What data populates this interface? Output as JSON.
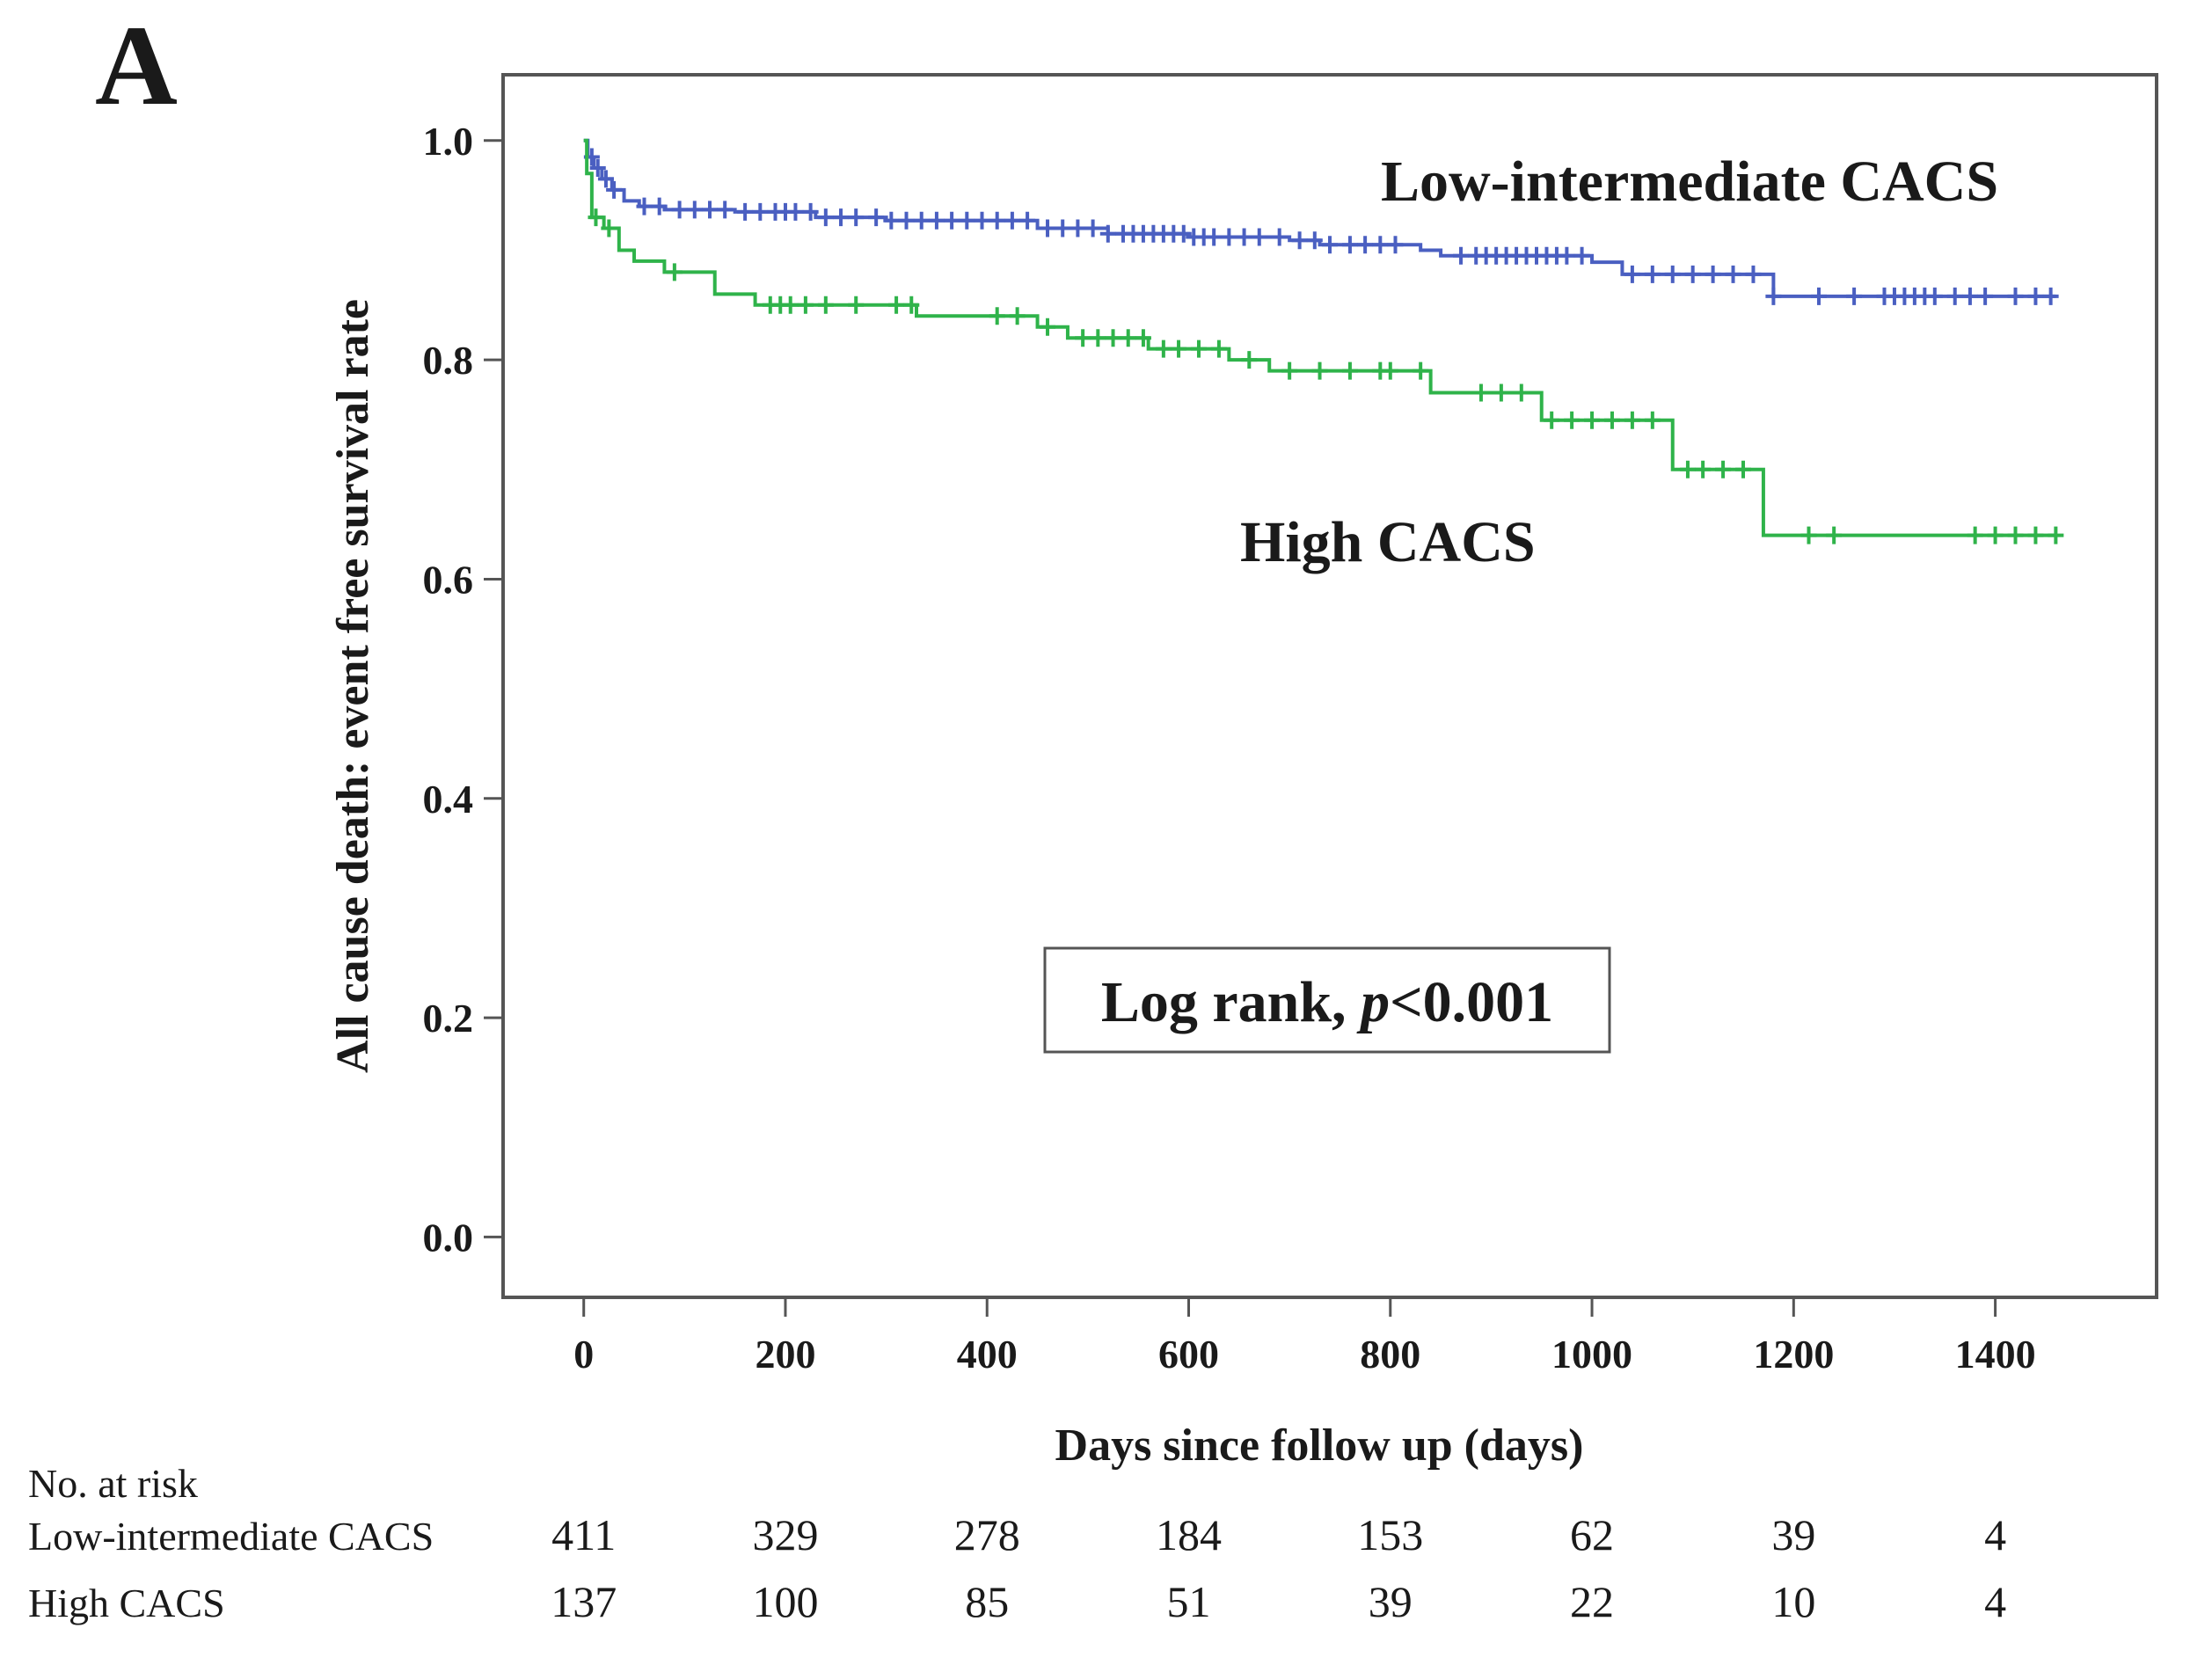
{
  "panel_label": "A",
  "chart_data": {
    "type": "line",
    "subtype": "kaplan-meier",
    "xlabel": "Days since follow up (days)",
    "ylabel": "All cause death: event free survival rate",
    "xlim": [
      -80,
      1560
    ],
    "ylim": [
      -0.055,
      1.06
    ],
    "xticks": [
      0,
      200,
      400,
      600,
      800,
      1000,
      1200,
      1400
    ],
    "xtick_labels": [
      "0",
      "200",
      "400",
      "600",
      "800",
      "1000",
      "1200",
      "1400"
    ],
    "yticks": [
      0.0,
      0.2,
      0.4,
      0.6,
      0.8,
      1.0
    ],
    "ytick_labels": [
      "0.0",
      "0.2",
      "0.4",
      "0.6",
      "0.8",
      "1.0"
    ],
    "annotation": {
      "prefix": "Log rank, ",
      "p_symbol": "p",
      "suffix": "<0.001"
    },
    "series": [
      {
        "name": "Low-intermediate CACS",
        "label": "Low-intermediate CACS",
        "color": "#4a5fc1",
        "steps": [
          [
            0,
            1.0
          ],
          [
            4,
            0.985
          ],
          [
            10,
            0.975
          ],
          [
            18,
            0.965
          ],
          [
            28,
            0.955
          ],
          [
            40,
            0.945
          ],
          [
            55,
            0.94
          ],
          [
            80,
            0.937
          ],
          [
            150,
            0.935
          ],
          [
            230,
            0.93
          ],
          [
            300,
            0.927
          ],
          [
            450,
            0.92
          ],
          [
            520,
            0.915
          ],
          [
            600,
            0.912
          ],
          [
            700,
            0.909
          ],
          [
            730,
            0.905
          ],
          [
            830,
            0.9
          ],
          [
            850,
            0.895
          ],
          [
            1000,
            0.889
          ],
          [
            1030,
            0.878
          ],
          [
            1180,
            0.858
          ],
          [
            1460,
            0.858
          ]
        ],
        "censor_times": [
          8,
          14,
          22,
          30,
          60,
          75,
          95,
          110,
          125,
          140,
          160,
          175,
          190,
          200,
          210,
          225,
          240,
          255,
          270,
          290,
          305,
          320,
          335,
          350,
          365,
          380,
          395,
          410,
          425,
          440,
          460,
          475,
          490,
          505,
          520,
          535,
          545,
          555,
          565,
          575,
          585,
          595,
          605,
          615,
          625,
          640,
          655,
          670,
          690,
          710,
          725,
          740,
          760,
          775,
          790,
          805,
          870,
          885,
          895,
          905,
          915,
          925,
          935,
          945,
          955,
          965,
          975,
          990,
          1040,
          1060,
          1080,
          1100,
          1120,
          1140,
          1160,
          1180,
          1225,
          1260,
          1290,
          1300,
          1310,
          1320,
          1330,
          1340,
          1360,
          1375,
          1390,
          1420,
          1440,
          1455
        ]
      },
      {
        "name": "High CACS",
        "label": "High CACS",
        "color": "#2fb34a",
        "steps": [
          [
            0,
            1.0
          ],
          [
            3,
            0.97
          ],
          [
            8,
            0.93
          ],
          [
            20,
            0.92
          ],
          [
            35,
            0.9
          ],
          [
            50,
            0.89
          ],
          [
            80,
            0.88
          ],
          [
            130,
            0.86
          ],
          [
            170,
            0.85
          ],
          [
            330,
            0.84
          ],
          [
            450,
            0.83
          ],
          [
            480,
            0.82
          ],
          [
            560,
            0.81
          ],
          [
            640,
            0.8
          ],
          [
            680,
            0.79
          ],
          [
            840,
            0.77
          ],
          [
            950,
            0.745
          ],
          [
            1080,
            0.7
          ],
          [
            1170,
            0.64
          ],
          [
            1460,
            0.64
          ]
        ],
        "censor_times": [
          12,
          25,
          90,
          185,
          195,
          205,
          220,
          240,
          270,
          310,
          325,
          410,
          430,
          460,
          495,
          510,
          525,
          540,
          555,
          575,
          590,
          610,
          630,
          660,
          700,
          730,
          760,
          790,
          800,
          830,
          890,
          910,
          930,
          960,
          980,
          1000,
          1020,
          1040,
          1060,
          1095,
          1110,
          1130,
          1150,
          1215,
          1240,
          1380,
          1400,
          1420,
          1440,
          1460
        ]
      }
    ]
  },
  "risk_table": {
    "header": "No. at risk",
    "rows": [
      {
        "label": "Low-intermediate  CACS",
        "values": [
          "411",
          "329",
          "278",
          "184",
          "153",
          "62",
          "39",
          "4"
        ]
      },
      {
        "label": "High  CACS",
        "values": [
          "137",
          "100",
          "85",
          "51",
          "39",
          "22",
          "10",
          "4"
        ]
      }
    ]
  }
}
